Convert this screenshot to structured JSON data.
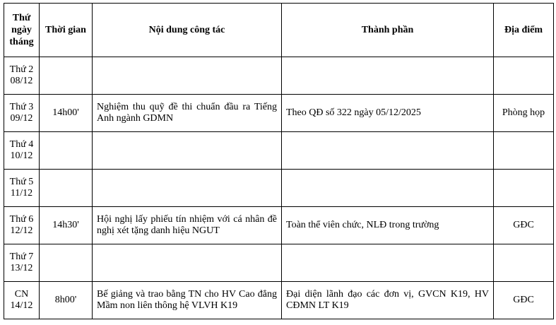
{
  "headers": {
    "day_line1": "Thứ",
    "day_line2": "ngày",
    "day_line3": "tháng",
    "time": "Thời gian",
    "content": "Nội dung công tác",
    "participants": "Thành phần",
    "location": "Địa điểm"
  },
  "rows": [
    {
      "day": "Thứ 2",
      "date": "08/12",
      "time": "",
      "content": "",
      "participants": "",
      "location": ""
    },
    {
      "day": "Thứ 3",
      "date": "09/12",
      "time": "14h00'",
      "content": "Nghiệm thu quỹ đề thi chuẩn đầu ra Tiếng Anh ngành GDMN",
      "participants": "Theo QĐ số 322 ngày 05/12/2025",
      "location": "Phòng họp"
    },
    {
      "day": "Thứ 4",
      "date": "10/12",
      "time": "",
      "content": "",
      "participants": "",
      "location": ""
    },
    {
      "day": "Thứ 5",
      "date": "11/12",
      "time": "",
      "content": "",
      "participants": "",
      "location": ""
    },
    {
      "day": "Thứ 6",
      "date": "12/12",
      "time": "14h30'",
      "content": "Hội nghị lấy phiếu tín nhiệm với cá nhân đề nghị xét tặng danh hiệu NGUT",
      "participants": "Toàn thể viên chức, NLĐ trong trường",
      "location": "GĐC"
    },
    {
      "day": "Thứ 7",
      "date": "13/12",
      "time": "",
      "content": "",
      "participants": "",
      "location": ""
    },
    {
      "day": "CN",
      "date": "14/12",
      "time": "8h00'",
      "content": "Bế giảng và trao bằng TN cho HV Cao đẳng Mầm non liên thông hệ VLVH K19",
      "participants": "Đại diện lãnh đạo các đơn vị, GVCN K19, HV CĐMN LT K19",
      "location": "GĐC"
    }
  ]
}
